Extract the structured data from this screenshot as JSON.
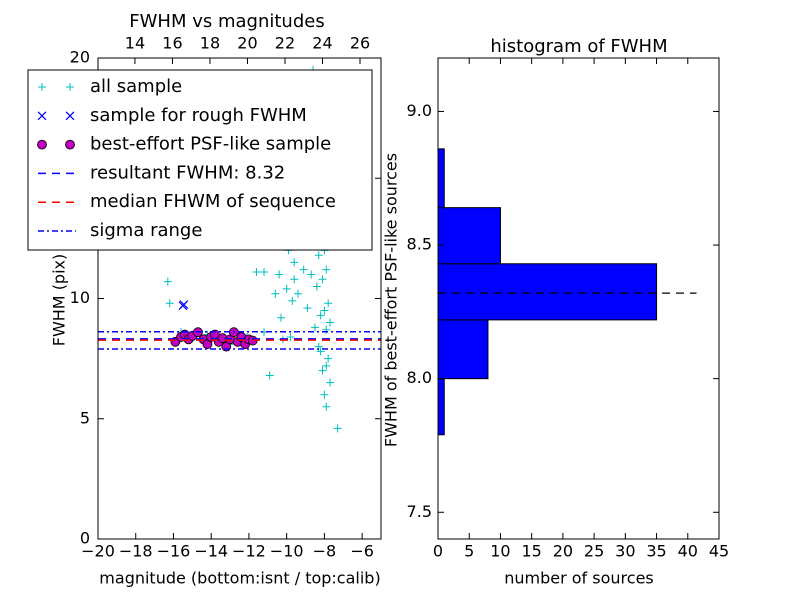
{
  "chart_data": [
    {
      "type": "scatter",
      "title": "FWHM vs magnitudes",
      "xlabel": "magnitude (bottom:isnt / top:calib)",
      "ylabel": "FWHM (pix)",
      "xlim": [
        -20,
        -5
      ],
      "xticks": [
        {
          "value": -20,
          "label": "−20"
        },
        {
          "value": -18,
          "label": "−18"
        },
        {
          "value": -16,
          "label": "−16"
        },
        {
          "value": -14,
          "label": "−14"
        },
        {
          "value": -12,
          "label": "−12"
        },
        {
          "value": -10,
          "label": "−10"
        },
        {
          "value": -8,
          "label": "−8"
        },
        {
          "value": -6,
          "label": "−6"
        }
      ],
      "x2lim": [
        12.03,
        27.12
      ],
      "x2ticks": [
        14,
        16,
        18,
        20,
        22,
        24,
        26
      ],
      "ylim": [
        0,
        20
      ],
      "yticks": [
        0,
        5,
        10,
        15,
        20
      ],
      "legend": "upper left",
      "series": [
        {
          "name": "all sample",
          "color": "#00bfbf",
          "marker": "+",
          "x": [
            -16.3,
            -16.2,
            -15.6,
            -14.9,
            -14.2,
            -13.0,
            -12.1,
            -11.6,
            -11.2,
            -10.9,
            -10.6,
            -10.4,
            -10.2,
            -10.0,
            -9.9,
            -9.7,
            -9.6,
            -9.5,
            -9.4,
            -9.3,
            -9.2,
            -9.1,
            -9.0,
            -8.9,
            -8.8,
            -8.8,
            -8.7,
            -8.7,
            -8.6,
            -8.6,
            -8.5,
            -8.5,
            -8.4,
            -8.4,
            -8.3,
            -8.3,
            -8.3,
            -8.2,
            -8.2,
            -8.2,
            -8.1,
            -8.1,
            -8.1,
            -8.0,
            -8.0,
            -8.0,
            -7.9,
            -7.9,
            -7.9,
            -7.8,
            -7.8,
            -7.8,
            -7.7,
            -7.7,
            -8.6,
            -8.4,
            -8.2,
            -8.0,
            -7.9,
            -8.3,
            -8.1,
            -7.3,
            -11.2,
            -10.3,
            -9.8,
            -9.6,
            -8.9,
            -8.5,
            -8.2,
            -7.9
          ],
          "values": [
            10.7,
            9.8,
            8.6,
            8.4,
            8.5,
            8.1,
            8.4,
            11.1,
            8.6,
            6.8,
            10.2,
            11.0,
            8.3,
            10.4,
            12.0,
            9.9,
            11.5,
            13.0,
            10.2,
            12.6,
            14.0,
            11.2,
            15.5,
            12.5,
            13.8,
            16.5,
            11.0,
            14.8,
            17.0,
            12.2,
            15.2,
            18.0,
            13.5,
            19.0,
            11.8,
            14.5,
            16.8,
            12.7,
            15.8,
            18.5,
            10.8,
            13.2,
            17.5,
            9.5,
            12.0,
            14.8,
            8.7,
            11.2,
            13.7,
            7.5,
            9.8,
            12.8,
            6.5,
            9.0,
            19.5,
            10.5,
            7.8,
            6.0,
            5.5,
            8.0,
            7.0,
            4.6,
            11.1,
            9.2,
            8.4,
            10.8,
            9.6,
            8.8,
            9.3,
            7.2
          ]
        },
        {
          "name": "sample for rough FWHM",
          "color": "#0000ff",
          "marker": "x",
          "x": [
            -15.5,
            -15.45
          ],
          "values": [
            9.7,
            9.75
          ]
        },
        {
          "name": "best-effort PSF-like sample",
          "color": "#bf00bf",
          "marker": "o",
          "x": [
            -15.9,
            -15.6,
            -15.4,
            -15.2,
            -15.0,
            -14.7,
            -14.4,
            -14.2,
            -14.0,
            -13.8,
            -13.6,
            -13.4,
            -13.2,
            -13.0,
            -12.8,
            -12.6,
            -12.4,
            -12.2,
            -12.0,
            -11.8
          ],
          "values": [
            8.2,
            8.4,
            8.5,
            8.3,
            8.45,
            8.6,
            8.3,
            8.1,
            8.4,
            8.5,
            8.2,
            8.35,
            8.0,
            8.3,
            8.6,
            8.2,
            8.4,
            8.1,
            8.3,
            8.25
          ]
        },
        {
          "name": "resultant FWHM: 8.32",
          "color": "#0000ff",
          "linestyle": "dashed",
          "values": [
            8.32
          ]
        },
        {
          "name": "median FHWM of sequence",
          "color": "#ff0000",
          "linestyle": "dashed",
          "values": [
            8.27
          ]
        },
        {
          "name": "sigma range",
          "color": "#0000ff",
          "linestyle": "dashdot",
          "values": [
            8.62,
            7.9
          ]
        }
      ]
    },
    {
      "type": "histogram",
      "orientation": "horizontal",
      "title": "histogram of FWHM",
      "xlabel": "number of sources",
      "ylabel": "FWHM of best-effort PSF-like sources",
      "bins": [
        7.79,
        8.0,
        8.22,
        8.43,
        8.64,
        8.86
      ],
      "counts": [
        1,
        8,
        35,
        10,
        1
      ],
      "color": "#0000ff",
      "xlim": [
        0,
        45
      ],
      "xticks": [
        0,
        5,
        10,
        15,
        20,
        25,
        30,
        35,
        40,
        45
      ],
      "ylim": [
        7.4,
        9.2
      ],
      "yticks": [
        {
          "value": 7.5,
          "label": "7.5"
        },
        {
          "value": 8,
          "label": "8.0"
        },
        {
          "value": 8.5,
          "label": "8.5"
        },
        {
          "value": 9,
          "label": "9.0"
        }
      ],
      "hline": {
        "value": 8.32,
        "color": "#000000",
        "linestyle": "dashed"
      }
    }
  ]
}
